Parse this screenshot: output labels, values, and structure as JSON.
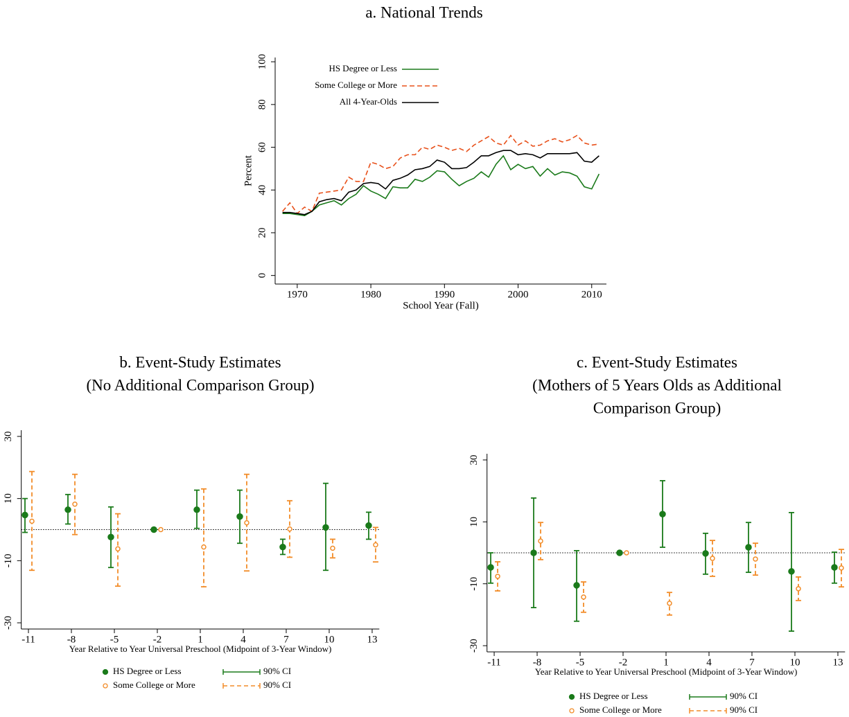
{
  "chart_data": [
    {
      "type": "line",
      "title": [
        "a. National Trends"
      ],
      "xlabel": "School Year (Fall)",
      "ylabel": "Percent",
      "x": [
        1968,
        1969,
        1970,
        1971,
        1972,
        1973,
        1974,
        1975,
        1976,
        1977,
        1978,
        1979,
        1980,
        1981,
        1982,
        1983,
        1984,
        1985,
        1986,
        1987,
        1988,
        1989,
        1990,
        1991,
        1992,
        1993,
        1994,
        1995,
        1996,
        1997,
        1998,
        1999,
        2000,
        2001,
        2002,
        2003,
        2004,
        2005,
        2006,
        2007,
        2008,
        2009,
        2010,
        2011
      ],
      "series": [
        {
          "name": "HS Degree or Less",
          "color": "#1a7a1a",
          "dash": false,
          "values": [
            29,
            29,
            28.5,
            28,
            30,
            33,
            34,
            35,
            33,
            36,
            38,
            42,
            39.5,
            38,
            36,
            41.5,
            41,
            41,
            45,
            44,
            46,
            49,
            48.5,
            45,
            42,
            44,
            45.5,
            48.5,
            46,
            52,
            56,
            49.5,
            52,
            50,
            51,
            46.5,
            50,
            47,
            48.5,
            48,
            46.5,
            41.5,
            40.5,
            47.5
          ]
        },
        {
          "name": "Some College or More",
          "color": "#e8501a",
          "dash": true,
          "values": [
            30,
            34,
            29,
            32,
            30,
            38.5,
            39,
            39.5,
            40,
            46,
            44,
            44,
            53,
            52,
            50,
            51,
            55,
            56.5,
            56.5,
            60,
            59,
            61,
            60,
            58.5,
            59.5,
            58,
            61,
            63,
            65,
            62,
            61,
            65.5,
            61,
            63,
            60.5,
            61,
            63,
            64,
            62.5,
            63.5,
            65.5,
            62,
            61,
            61.5
          ]
        },
        {
          "name": "All 4-Year-Olds",
          "color": "#000000",
          "dash": false,
          "values": [
            29.5,
            29.5,
            29,
            28.5,
            30,
            34.5,
            35.5,
            36,
            35,
            39,
            40,
            43,
            43.5,
            43,
            40.5,
            44.5,
            45.5,
            47,
            49.5,
            50,
            51,
            54,
            53,
            50,
            50,
            50.5,
            53,
            56,
            56,
            57.5,
            58.5,
            58.5,
            56.5,
            57,
            56.5,
            55,
            57,
            57,
            57,
            57,
            57.5,
            53.5,
            53,
            56
          ]
        }
      ],
      "xlim": [
        1967,
        2012
      ],
      "xticks": [
        1970,
        1980,
        1990,
        2000,
        2010
      ],
      "ylim": [
        -4,
        102
      ],
      "yticks": [
        0,
        20,
        40,
        60,
        80,
        100
      ],
      "legend": "top-left"
    },
    {
      "type": "errorbar",
      "title": [
        "b. Event-Study Estimates",
        "(No Additional Comparison Group)"
      ],
      "xlabel": "Year Relative to Year Universal Preschool (Midpoint of 3-Year Window)",
      "x": [
        -11,
        -8,
        -5,
        -2,
        1,
        4,
        7,
        10,
        13
      ],
      "series": [
        {
          "name": "HS Degree or Less",
          "ci_name": "90% CI",
          "color": "#1a7a1a",
          "marker": "filled",
          "dash": false,
          "values": [
            4.7,
            6.4,
            -2.4,
            0,
            6.4,
            4.2,
            -5.6,
            0.7,
            1.3
          ],
          "upper": [
            10,
            11.3,
            7.3,
            null,
            12.7,
            12.7,
            -3.1,
            14.9,
            5.6
          ],
          "lower": [
            -0.9,
            1.8,
            -12.2,
            null,
            0.4,
            -4.4,
            -8,
            -13.1,
            -3.1
          ]
        },
        {
          "name": "Some College or More",
          "ci_name": "90% CI",
          "color": "#f28c28",
          "marker": "hollow",
          "dash": true,
          "values": [
            2.7,
            8.2,
            -6.2,
            0,
            -5.6,
            2.2,
            0.2,
            -6,
            -4.9
          ],
          "upper": [
            18.7,
            17.8,
            5.1,
            null,
            13.1,
            17.8,
            9.3,
            -3.1,
            0.7
          ],
          "lower": [
            -13.1,
            -1.6,
            -18.2,
            null,
            -18.4,
            -13.3,
            -8.9,
            -9.1,
            -10.4
          ]
        }
      ],
      "xlim": [
        -11.5,
        13.5
      ],
      "ylim": [
        -32,
        32
      ],
      "yticks": [
        -30,
        -10,
        10,
        30
      ],
      "yline": 0,
      "legend": "bottom"
    },
    {
      "type": "errorbar",
      "title": [
        "c. Event-Study Estimates",
        "(Mothers of 5 Years Olds as Additional",
        "Comparison Group)"
      ],
      "xlabel": "Year Relative to Year Universal Preschool (Midpoint of 3-Year Window)",
      "x": [
        -11,
        -8,
        -5,
        -2,
        1,
        4,
        7,
        10,
        13
      ],
      "series": [
        {
          "name": "HS Degree or Less",
          "ci_name": "90% CI",
          "color": "#1a7a1a",
          "marker": "filled",
          "dash": false,
          "values": [
            -4.7,
            0,
            -10.5,
            0,
            12.5,
            -0.2,
            1.8,
            -6,
            -4.7
          ],
          "upper": [
            0,
            17.7,
            0.7,
            null,
            23.3,
            6.3,
            9.8,
            13,
            0.2
          ],
          "lower": [
            -9.8,
            -17.7,
            -22.1,
            null,
            1.8,
            -6.9,
            -6.3,
            -25.3,
            -9.8
          ]
        },
        {
          "name": "Some College or More",
          "ci_name": "90% CI",
          "color": "#f28c28",
          "marker": "hollow",
          "dash": true,
          "values": [
            -7.6,
            3.8,
            -14.3,
            0,
            -16.3,
            -1.8,
            -2,
            -11.6,
            -4.9
          ],
          "upper": [
            -2.9,
            9.8,
            -9.4,
            null,
            -12.8,
            4,
            3.1,
            -7.8,
            1.1
          ],
          "lower": [
            -12.3,
            -2.2,
            -19.2,
            null,
            -20.1,
            -7.6,
            -7.2,
            -15.4,
            -11
          ]
        }
      ],
      "xlim": [
        -11.5,
        13.5
      ],
      "ylim": [
        -32,
        32
      ],
      "yticks": [
        -30,
        -10,
        10,
        30
      ],
      "yline": 0,
      "legend": "bottom"
    }
  ]
}
